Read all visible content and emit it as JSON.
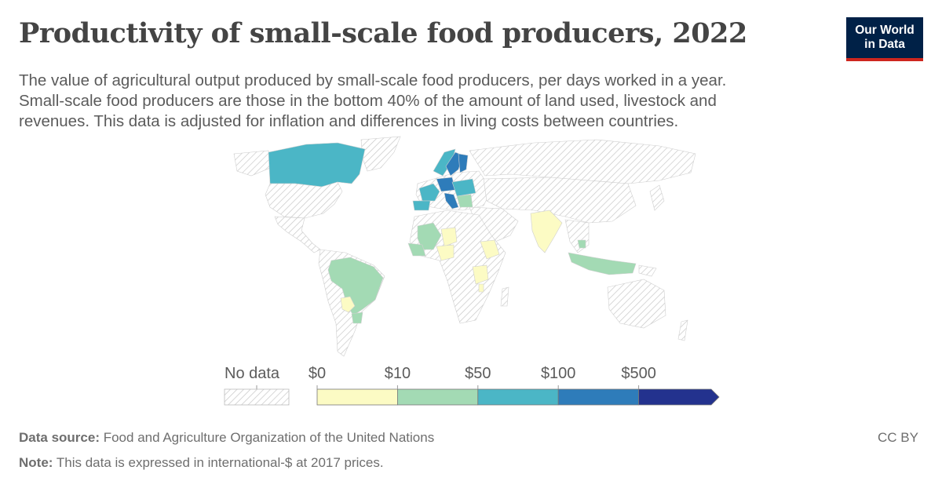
{
  "header": {
    "title": "Productivity of small-scale food producers, 2022",
    "subtitle_lines": [
      "The value of agricultural output produced by small-scale food producers, per days worked in a year.",
      "Small-scale food producers are those in the bottom 40% of the amount of land used, livestock and",
      "revenues. This data is adjusted for inflation and differences in living costs between countries."
    ]
  },
  "logo": {
    "line1": "Our World",
    "line2": "in Data",
    "bg_color": "#002147",
    "accent_color": "#ce261e"
  },
  "legend": {
    "no_data_label": "No data",
    "bins": [
      {
        "label": "$0",
        "color": "#fcfbc4"
      },
      {
        "label": "$10",
        "color": "#a3dab4"
      },
      {
        "label": "$50",
        "color": "#4bb6c6"
      },
      {
        "label": "$100",
        "color": "#2e7cba"
      },
      {
        "label": "$500",
        "color": "#23328e"
      }
    ]
  },
  "map_data": {
    "year": "2022",
    "colored_regions": [
      {
        "name": "Canada",
        "bin": "$50"
      },
      {
        "name": "Sweden",
        "bin": "$100"
      },
      {
        "name": "Finland",
        "bin": "$100"
      },
      {
        "name": "Norway",
        "bin": "$50"
      },
      {
        "name": "Germany",
        "bin": "$100"
      },
      {
        "name": "France",
        "bin": "$50"
      },
      {
        "name": "Spain",
        "bin": "$50"
      },
      {
        "name": "Italy",
        "bin": "$100"
      },
      {
        "name": "Brazil",
        "bin": "$10"
      },
      {
        "name": "Mali",
        "bin": "$10"
      },
      {
        "name": "Niger",
        "bin": "$0"
      },
      {
        "name": "Nigeria",
        "bin": "$0"
      },
      {
        "name": "Ethiopia",
        "bin": "$0"
      },
      {
        "name": "Tanzania",
        "bin": "$0"
      },
      {
        "name": "India",
        "bin": "$0"
      },
      {
        "name": "Indonesia",
        "bin": "$10"
      },
      {
        "name": "Paraguay",
        "bin": "$0"
      },
      {
        "name": "Uruguay",
        "bin": "$10"
      }
    ],
    "no_data_pattern": "hatched-gray"
  },
  "footer": {
    "source_label": "Data source:",
    "source_text": "Food and Agriculture Organization of the United Nations",
    "note_label": "Note:",
    "note_text": "This data is expressed in international-$ at 2017 prices.",
    "license": "CC BY"
  }
}
